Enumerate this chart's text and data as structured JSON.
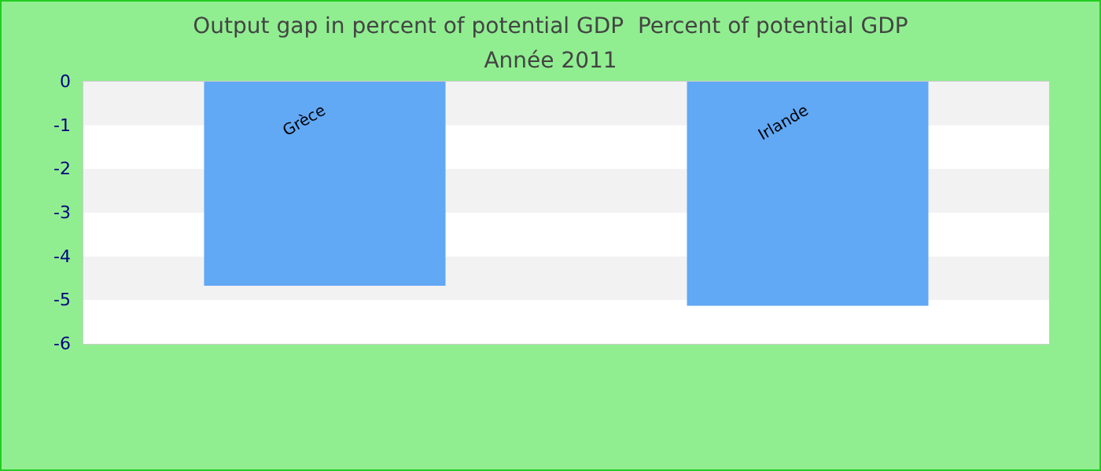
{
  "chart_data": {
    "type": "bar",
    "title": "Output gap in percent of potential GDP  Percent of potential GDP",
    "subtitle": "Année 2011",
    "categories": [
      "Grèce",
      "Irlande"
    ],
    "values": [
      -4.67,
      -5.13
    ],
    "color": "#61a8f5",
    "ylim": [
      -6,
      0
    ],
    "yticks": [
      0,
      -1,
      -2,
      -3,
      -4,
      -5,
      -6
    ]
  }
}
